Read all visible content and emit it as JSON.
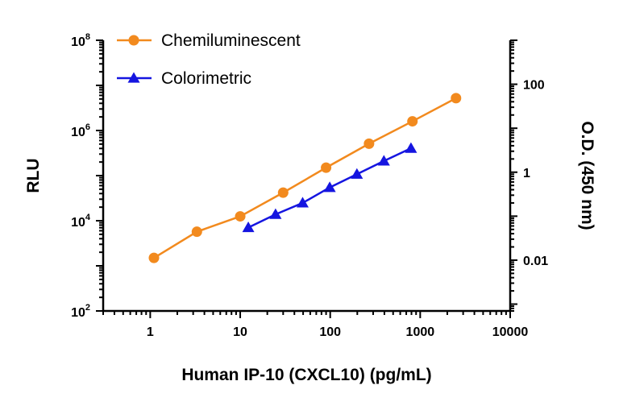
{
  "chart_data": {
    "type": "line",
    "xlabel": "Human IP-10 (CXCL10) (pg/mL)",
    "ylabel": "RLU",
    "y2label": "O.D. (450 nm)",
    "x_scale": "log",
    "y_scale": "log",
    "y2_scale": "log",
    "xlim": [
      0.3,
      10000
    ],
    "ylim": [
      100,
      100000000
    ],
    "y2lim": [
      0.0007,
      1000
    ],
    "x_ticks": [
      "1",
      "10",
      "100",
      "1000",
      "10000"
    ],
    "y_ticks": [
      {
        "base": "10",
        "exp": "2"
      },
      {
        "base": "10",
        "exp": "4"
      },
      {
        "base": "10",
        "exp": "6"
      },
      {
        "base": "10",
        "exp": "8"
      }
    ],
    "y2_ticks": [
      "0.01",
      "1",
      "100"
    ],
    "legend_position": "top-left",
    "grid": false,
    "series": [
      {
        "name": "Chemiluminescent",
        "axis": "left",
        "color": "#f28a1e",
        "marker": "circle",
        "x": [
          1.1,
          3.3,
          10,
          30,
          90,
          270,
          820,
          2500
        ],
        "y": [
          1500,
          5700,
          12500,
          42000,
          150000,
          510000,
          1600000,
          5200000
        ]
      },
      {
        "name": "Colorimetric",
        "axis": "right",
        "color": "#1515e0",
        "marker": "triangle",
        "x": [
          12.3,
          24.7,
          49.4,
          98.8,
          198,
          395,
          790
        ],
        "y": [
          0.055,
          0.11,
          0.2,
          0.45,
          0.9,
          1.8,
          3.5
        ]
      }
    ]
  }
}
